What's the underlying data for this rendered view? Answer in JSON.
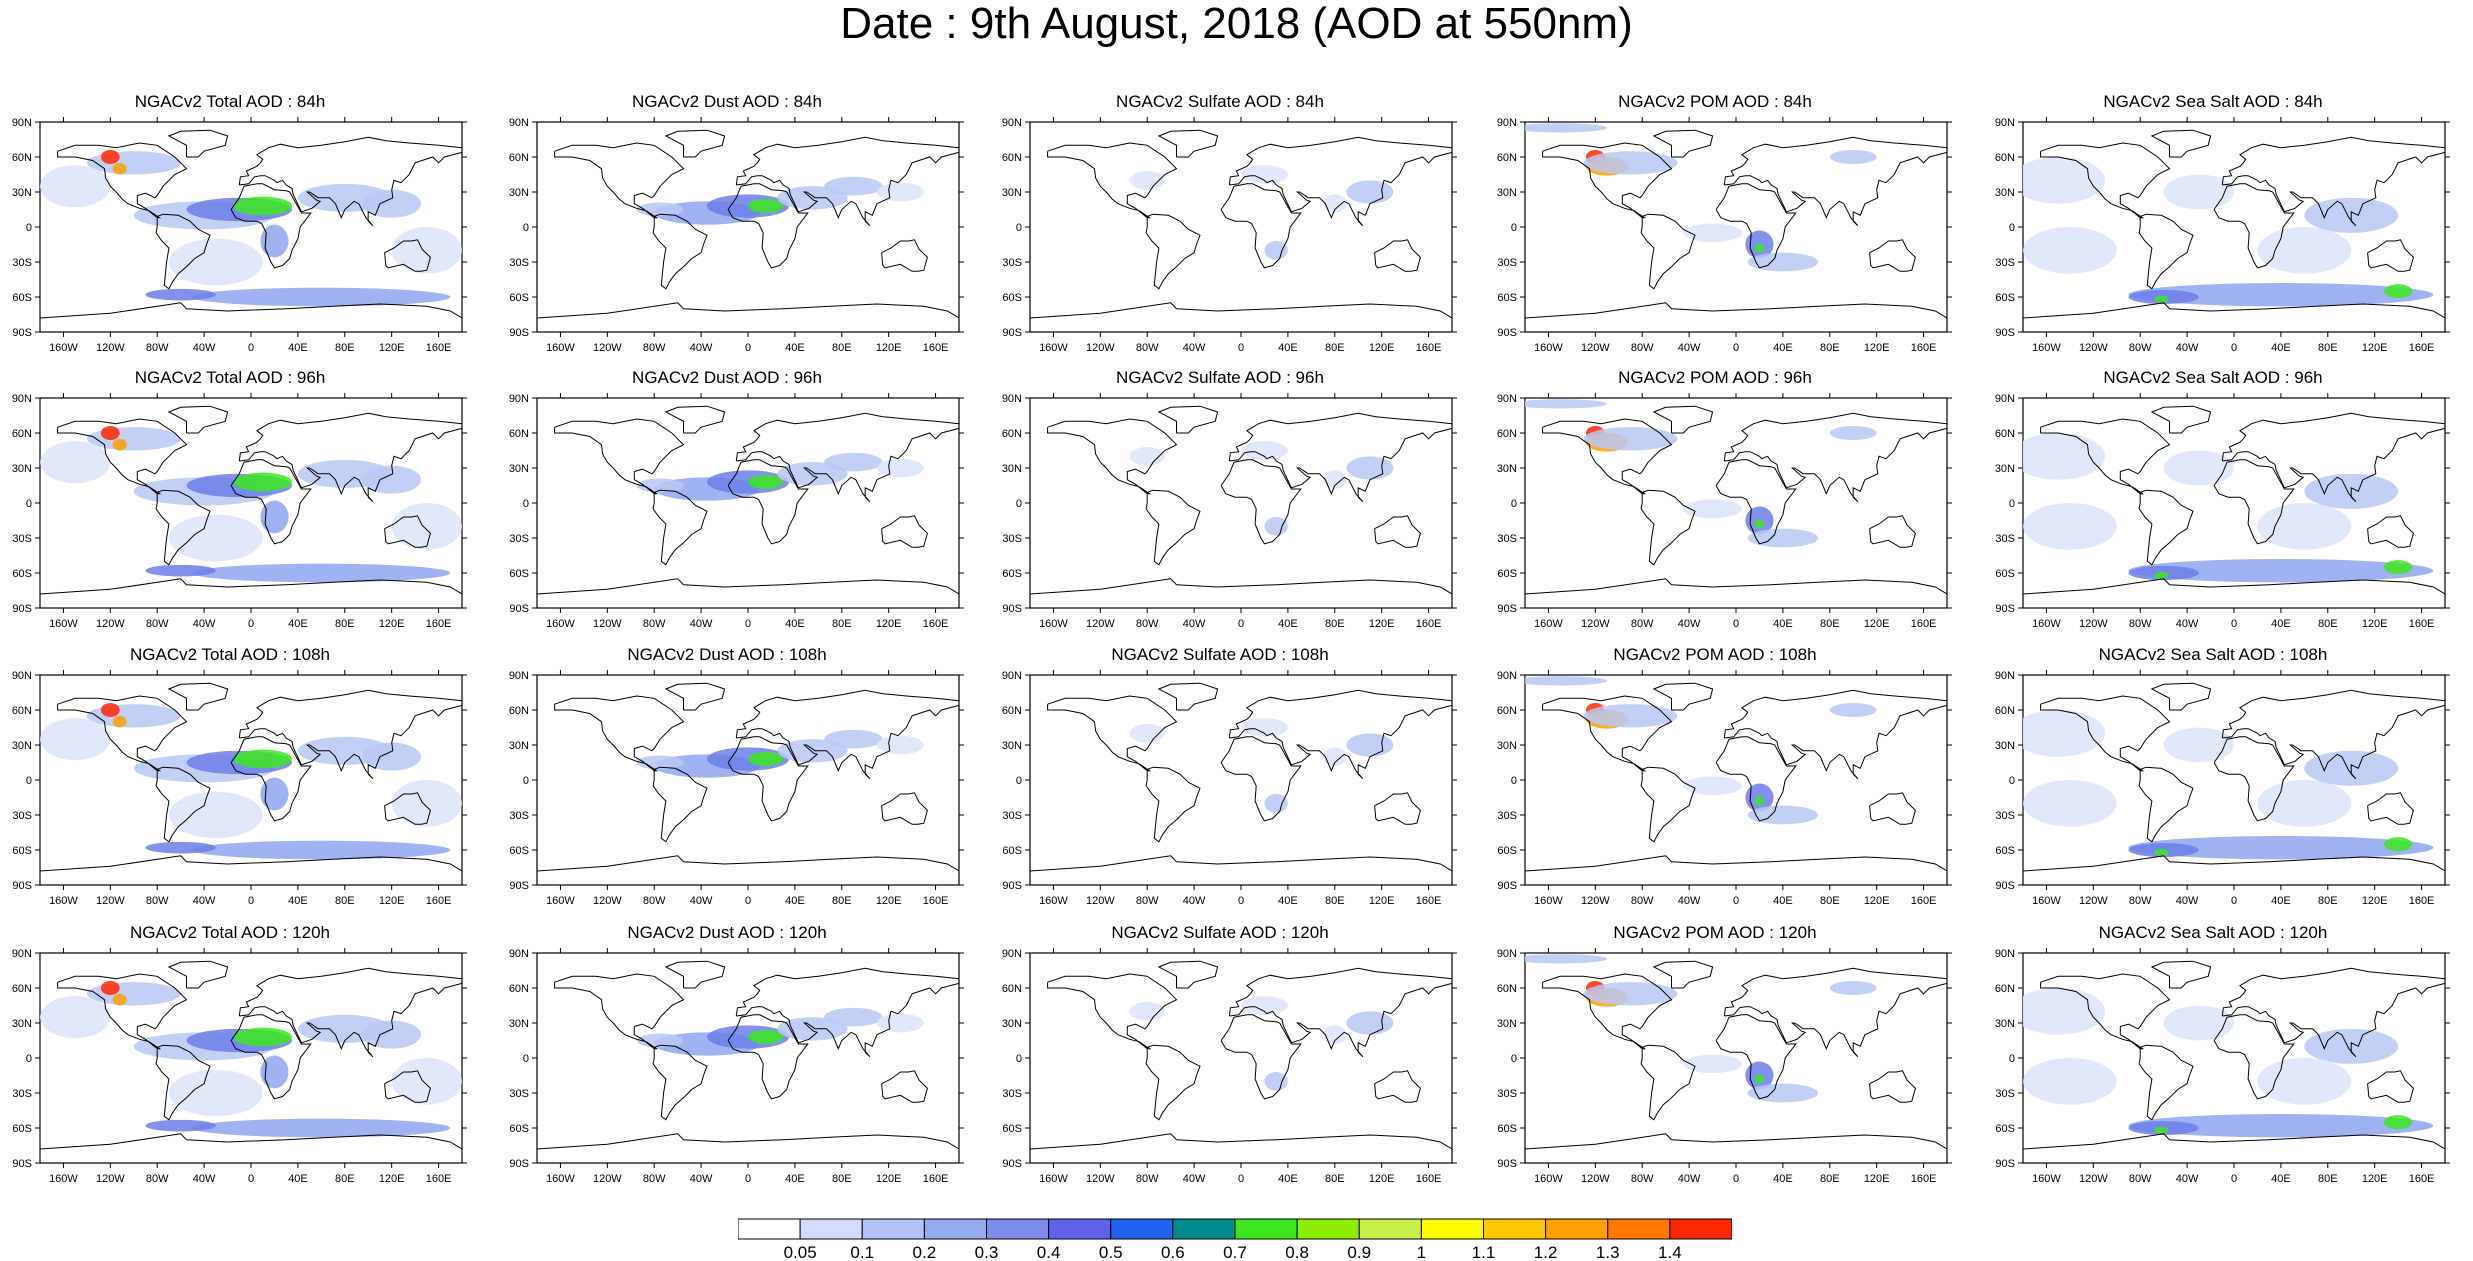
{
  "header": {
    "title": "Date : 9th August, 2018 (AOD at 550nm)"
  },
  "lat_labels": [
    "90N",
    "60N",
    "30N",
    "0",
    "30S",
    "60S",
    "90S"
  ],
  "lon_labels": [
    "160W",
    "120W",
    "80W",
    "40W",
    "0",
    "40E",
    "80E",
    "120E",
    "160E"
  ],
  "panels": [
    {
      "title": "NGACv2 Total AOD : 84h"
    },
    {
      "title": "NGACv2 Dust AOD : 84h"
    },
    {
      "title": "NGACv2 Sulfate AOD : 84h"
    },
    {
      "title": "NGACv2 POM AOD : 84h"
    },
    {
      "title": "NGACv2 Sea Salt AOD : 84h"
    },
    {
      "title": "NGACv2 Total AOD : 96h"
    },
    {
      "title": "NGACv2 Dust AOD : 96h"
    },
    {
      "title": "NGACv2 Sulfate AOD : 96h"
    },
    {
      "title": "NGACv2 POM AOD : 96h"
    },
    {
      "title": "NGACv2 Sea Salt AOD : 96h"
    },
    {
      "title": "NGACv2 Total AOD : 108h"
    },
    {
      "title": "NGACv2 Dust AOD : 108h"
    },
    {
      "title": "NGACv2 Sulfate AOD : 108h"
    },
    {
      "title": "NGACv2 POM AOD : 108h"
    },
    {
      "title": "NGACv2 Sea Salt AOD : 108h"
    },
    {
      "title": "NGACv2 Total AOD : 120h"
    },
    {
      "title": "NGACv2 Dust AOD : 120h"
    },
    {
      "title": "NGACv2 Sulfate AOD : 120h"
    },
    {
      "title": "NGACv2 POM AOD : 120h"
    },
    {
      "title": "NGACv2 Sea Salt  AOD : 120h"
    }
  ],
  "colorbar": {
    "labels": [
      "0.05",
      "0.1",
      "0.2",
      "0.3",
      "0.4",
      "0.5",
      "0.6",
      "0.7",
      "0.8",
      "0.9",
      "1",
      "1.1",
      "1.2",
      "1.3",
      "1.4"
    ],
    "colors": [
      "#ffffff",
      "#d2dcfa",
      "#b4c3f5",
      "#96aaf0",
      "#7d8ceb",
      "#5f64e6",
      "#1e64f0",
      "#008c8c",
      "#3ce61e",
      "#8ced00",
      "#c8f04b",
      "#ffff00",
      "#ffc800",
      "#ffa000",
      "#ff7800",
      "#ff2800"
    ]
  },
  "legend_colors": {
    "very_light": "#dfe6fb",
    "light": "#b9c8f5",
    "medium": "#8ea4ee",
    "dark": "#6c7ee8",
    "green": "#3ce61e",
    "yellow": "#ffff00",
    "orange": "#ffa000",
    "red": "#ff2800"
  }
}
